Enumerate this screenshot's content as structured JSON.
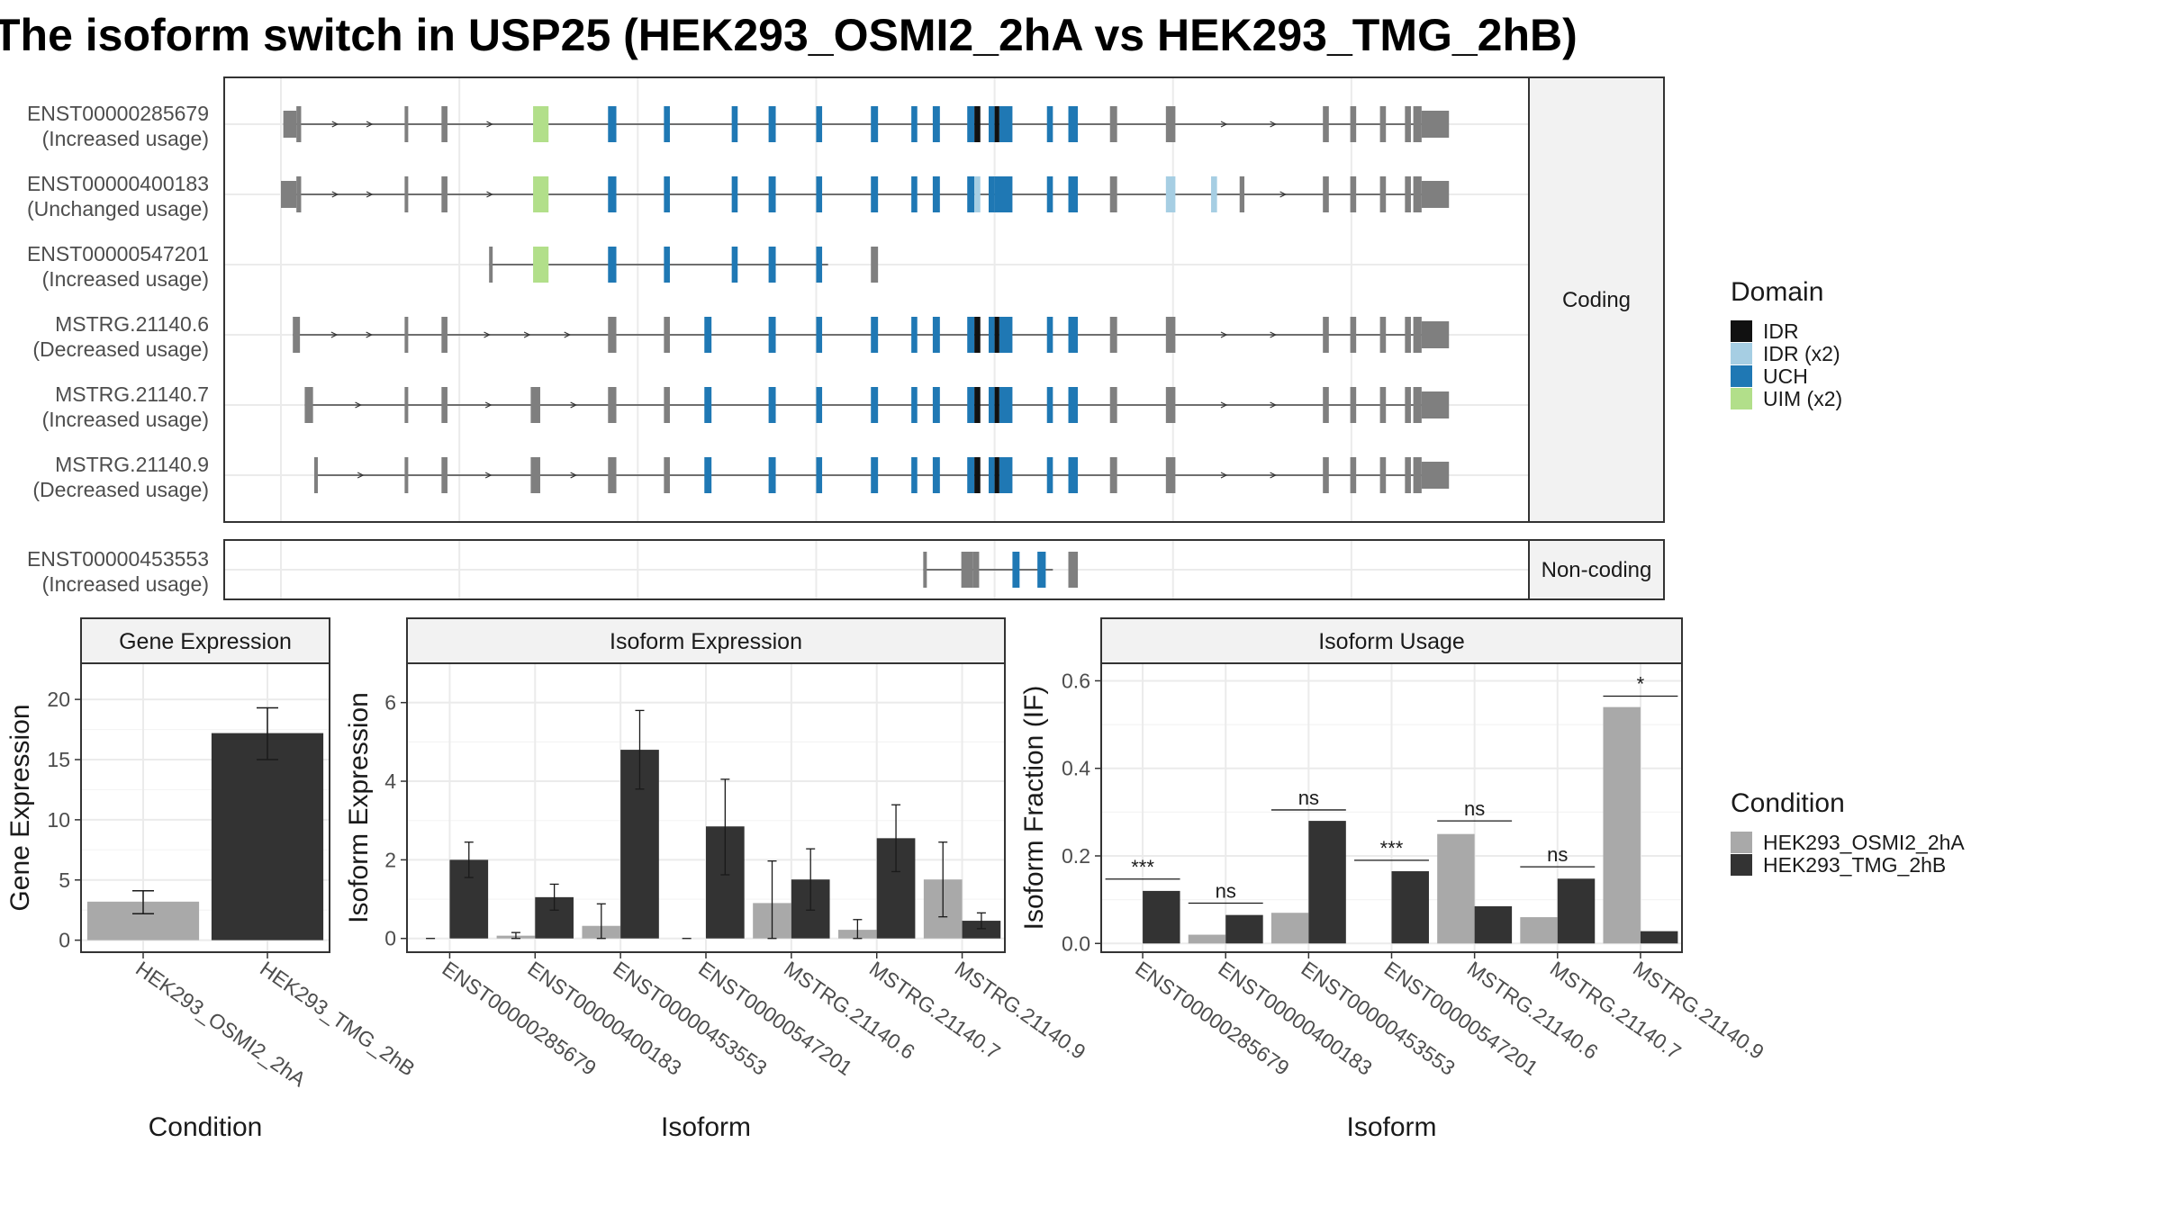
{
  "title": "The isoform switch in USP25 (HEK293_OSMI2_2hA vs HEK293_TMG_2hB)",
  "colors": {
    "IDR": "#111111",
    "IDR (x2)": "#a6cee3",
    "UCH": "#1f78b4",
    "UIM (x2)": "#b2df8a",
    "exon": "#7f7f7f",
    "cond1": "#a9a9a9",
    "cond2": "#333333"
  },
  "structure": {
    "facets": [
      "Coding",
      "Non-coding"
    ],
    "coding": [
      {
        "name": "ENST00000285679",
        "usage": "(Increased usage)",
        "start": 0.2,
        "end": 96.8,
        "exons": [
          [
            0.2,
            1.3,
            "utr"
          ],
          [
            1.3,
            1.7,
            null
          ],
          [
            10.4,
            10.7,
            null
          ],
          [
            13.5,
            14.0,
            null
          ],
          [
            21.2,
            22.5,
            "UIM (x2)"
          ],
          [
            27.5,
            28.2,
            "UCH"
          ],
          [
            32.2,
            32.7,
            "UCH"
          ],
          [
            37.9,
            38.4,
            "UCH"
          ],
          [
            41.0,
            41.6,
            "UCH"
          ],
          [
            45.0,
            45.5,
            "UCH"
          ],
          [
            49.6,
            50.2,
            "UCH"
          ],
          [
            53.0,
            53.5,
            "UCH"
          ],
          [
            54.8,
            55.4,
            "UCH"
          ],
          [
            57.7,
            58.3,
            "UCH"
          ],
          [
            58.3,
            58.8,
            "IDR"
          ],
          [
            59.5,
            60.0,
            "UCH"
          ],
          [
            60.0,
            60.4,
            "IDR"
          ],
          [
            60.4,
            61.5,
            "UCH"
          ],
          [
            64.4,
            64.9,
            "UCH"
          ],
          [
            66.2,
            67.0,
            "UCH"
          ],
          [
            69.7,
            70.3,
            null
          ],
          [
            74.4,
            75.2,
            null
          ],
          [
            87.6,
            88.1,
            null
          ],
          [
            89.9,
            90.4,
            null
          ],
          [
            92.4,
            92.9,
            null
          ],
          [
            94.5,
            95.0,
            null
          ],
          [
            95.2,
            95.9,
            null
          ],
          [
            95.9,
            98.2,
            "utr"
          ]
        ]
      },
      {
        "name": "ENST00000400183",
        "usage": "(Unchanged usage)",
        "start": 0.0,
        "end": 96.8,
        "exons": [
          [
            0.0,
            1.3,
            "utr"
          ],
          [
            1.3,
            1.7,
            null
          ],
          [
            10.4,
            10.7,
            null
          ],
          [
            13.5,
            14.0,
            null
          ],
          [
            21.2,
            22.5,
            "UIM (x2)"
          ],
          [
            27.5,
            28.2,
            "UCH"
          ],
          [
            32.2,
            32.7,
            "UCH"
          ],
          [
            37.9,
            38.4,
            "UCH"
          ],
          [
            41.0,
            41.6,
            "UCH"
          ],
          [
            45.0,
            45.5,
            "UCH"
          ],
          [
            49.6,
            50.2,
            "UCH"
          ],
          [
            53.0,
            53.5,
            "UCH"
          ],
          [
            54.8,
            55.4,
            "UCH"
          ],
          [
            57.7,
            58.3,
            "UCH"
          ],
          [
            58.3,
            58.8,
            "IDR (x2)"
          ],
          [
            59.5,
            60.0,
            "UCH"
          ],
          [
            60.0,
            61.5,
            "UCH"
          ],
          [
            64.4,
            64.9,
            "UCH"
          ],
          [
            66.2,
            67.0,
            "UCH"
          ],
          [
            69.7,
            70.3,
            null
          ],
          [
            74.4,
            75.2,
            "IDR (x2)"
          ],
          [
            78.2,
            78.7,
            "IDR (x2)"
          ],
          [
            80.6,
            81.0,
            null
          ],
          [
            87.6,
            88.1,
            null
          ],
          [
            89.9,
            90.4,
            null
          ],
          [
            92.4,
            92.9,
            null
          ],
          [
            94.5,
            95.0,
            null
          ],
          [
            95.2,
            95.9,
            null
          ],
          [
            95.9,
            98.2,
            "utr"
          ]
        ]
      },
      {
        "name": "ENST00000547201",
        "usage": "(Increased usage)",
        "start": 17.5,
        "end": 46.0,
        "exons": [
          [
            17.5,
            17.7,
            null
          ],
          [
            21.2,
            22.5,
            "UIM (x2)"
          ],
          [
            27.5,
            28.2,
            "UCH"
          ],
          [
            32.2,
            32.7,
            "UCH"
          ],
          [
            37.9,
            38.4,
            "UCH"
          ],
          [
            41.0,
            41.6,
            "UCH"
          ],
          [
            45.0,
            45.5,
            "UCH"
          ],
          [
            49.6,
            50.2,
            null
          ]
        ]
      },
      {
        "name": "MSTRG.21140.6",
        "usage": "(Decreased usage)",
        "start": 1.0,
        "end": 96.8,
        "exons": [
          [
            1.0,
            1.6,
            null
          ],
          [
            10.4,
            10.7,
            null
          ],
          [
            13.5,
            14.0,
            null
          ],
          [
            27.5,
            28.2,
            null
          ],
          [
            32.2,
            32.7,
            null
          ],
          [
            35.6,
            36.2,
            "UCH"
          ],
          [
            41.0,
            41.6,
            "UCH"
          ],
          [
            45.0,
            45.5,
            "UCH"
          ],
          [
            49.6,
            50.2,
            "UCH"
          ],
          [
            53.0,
            53.5,
            "UCH"
          ],
          [
            54.8,
            55.4,
            "UCH"
          ],
          [
            57.7,
            58.3,
            "UCH"
          ],
          [
            58.3,
            58.8,
            "IDR"
          ],
          [
            59.5,
            60.0,
            "UCH"
          ],
          [
            60.0,
            60.4,
            "IDR"
          ],
          [
            60.4,
            61.5,
            "UCH"
          ],
          [
            64.4,
            64.9,
            "UCH"
          ],
          [
            66.2,
            67.0,
            "UCH"
          ],
          [
            69.7,
            70.3,
            null
          ],
          [
            74.4,
            75.2,
            null
          ],
          [
            87.6,
            88.1,
            null
          ],
          [
            89.9,
            90.4,
            null
          ],
          [
            92.4,
            92.9,
            null
          ],
          [
            94.5,
            95.0,
            null
          ],
          [
            95.2,
            95.9,
            null
          ],
          [
            95.9,
            98.2,
            "utr"
          ]
        ]
      },
      {
        "name": "MSTRG.21140.7",
        "usage": "(Increased usage)",
        "start": 2.0,
        "end": 96.8,
        "exons": [
          [
            2.0,
            2.7,
            null
          ],
          [
            10.4,
            10.7,
            null
          ],
          [
            13.5,
            14.0,
            null
          ],
          [
            21.0,
            21.8,
            null
          ],
          [
            27.5,
            28.2,
            null
          ],
          [
            32.2,
            32.7,
            null
          ],
          [
            35.6,
            36.2,
            "UCH"
          ],
          [
            41.0,
            41.6,
            "UCH"
          ],
          [
            45.0,
            45.5,
            "UCH"
          ],
          [
            49.6,
            50.2,
            "UCH"
          ],
          [
            53.0,
            53.5,
            "UCH"
          ],
          [
            54.8,
            55.4,
            "UCH"
          ],
          [
            57.7,
            58.3,
            "UCH"
          ],
          [
            58.3,
            58.8,
            "IDR"
          ],
          [
            59.5,
            60.0,
            "UCH"
          ],
          [
            60.0,
            60.4,
            "IDR"
          ],
          [
            60.4,
            61.5,
            "UCH"
          ],
          [
            64.4,
            64.9,
            "UCH"
          ],
          [
            66.2,
            67.0,
            "UCH"
          ],
          [
            69.7,
            70.3,
            null
          ],
          [
            74.4,
            75.2,
            null
          ],
          [
            87.6,
            88.1,
            null
          ],
          [
            89.9,
            90.4,
            null
          ],
          [
            92.4,
            92.9,
            null
          ],
          [
            94.5,
            95.0,
            null
          ],
          [
            95.2,
            95.9,
            null
          ],
          [
            95.9,
            98.2,
            "utr"
          ]
        ]
      },
      {
        "name": "MSTRG.21140.9",
        "usage": "(Decreased usage)",
        "start": 2.8,
        "end": 96.8,
        "exons": [
          [
            2.8,
            3.1,
            null
          ],
          [
            10.4,
            10.7,
            null
          ],
          [
            13.5,
            14.0,
            null
          ],
          [
            21.0,
            21.8,
            null
          ],
          [
            27.5,
            28.2,
            null
          ],
          [
            32.2,
            32.7,
            null
          ],
          [
            35.6,
            36.2,
            "UCH"
          ],
          [
            41.0,
            41.6,
            "UCH"
          ],
          [
            45.0,
            45.5,
            "UCH"
          ],
          [
            49.6,
            50.2,
            "UCH"
          ],
          [
            53.0,
            53.5,
            "UCH"
          ],
          [
            54.8,
            55.4,
            "UCH"
          ],
          [
            57.7,
            58.3,
            "UCH"
          ],
          [
            58.3,
            58.8,
            "IDR"
          ],
          [
            59.5,
            60.0,
            "UCH"
          ],
          [
            60.0,
            60.4,
            "IDR"
          ],
          [
            60.4,
            61.5,
            "UCH"
          ],
          [
            64.4,
            64.9,
            "UCH"
          ],
          [
            66.2,
            67.0,
            "UCH"
          ],
          [
            69.7,
            70.3,
            null
          ],
          [
            74.4,
            75.2,
            null
          ],
          [
            87.6,
            88.1,
            null
          ],
          [
            89.9,
            90.4,
            null
          ],
          [
            92.4,
            92.9,
            null
          ],
          [
            94.5,
            95.0,
            null
          ],
          [
            95.2,
            95.9,
            null
          ],
          [
            95.9,
            98.2,
            "utr"
          ]
        ]
      }
    ],
    "noncoding": [
      {
        "name": "ENST00000453553",
        "usage": "(Increased usage)",
        "start": 54.0,
        "end": 64.9,
        "exons": [
          [
            54.0,
            54.3,
            null
          ],
          [
            57.2,
            58.2,
            null
          ],
          [
            58.2,
            58.7,
            null
          ],
          [
            61.5,
            62.1,
            "UCH"
          ],
          [
            63.6,
            64.3,
            "UCH"
          ],
          [
            66.2,
            67.0,
            null
          ]
        ]
      }
    ]
  },
  "legend_domain": {
    "title": "Domain",
    "items": [
      "IDR",
      "IDR (x2)",
      "UCH",
      "UIM (x2)"
    ]
  },
  "legend_condition": {
    "title": "Condition",
    "items": [
      "HEK293_OSMI2_2hA",
      "HEK293_TMG_2hB"
    ]
  },
  "chart_data": [
    {
      "type": "bar",
      "title": "Gene Expression",
      "xlabel": "Condition",
      "ylabel": "Gene Expression",
      "ylim": [
        -1,
        23
      ],
      "yticks": [
        0,
        5,
        10,
        15,
        20
      ],
      "categories": [
        "HEK293_OSMI2_2hA",
        "HEK293_TMG_2hB"
      ],
      "values": [
        3.2,
        17.2
      ],
      "errors": [
        [
          2.2,
          4.1
        ],
        [
          15.0,
          19.3
        ]
      ]
    },
    {
      "type": "bar",
      "title": "Isoform Expression",
      "xlabel": "Isoform",
      "ylabel": "Isoform Expression",
      "ylim": [
        -0.35,
        7.0
      ],
      "yticks": [
        0,
        2,
        4,
        6
      ],
      "categories": [
        "ENST00000285679",
        "ENST00000400183",
        "ENST00000453553",
        "ENST00000547201",
        "MSTRG.21140.6",
        "MSTRG.21140.7",
        "MSTRG.21140.9"
      ],
      "series": [
        {
          "name": "HEK293_OSMI2_2hA",
          "values": [
            0.0,
            0.07,
            0.32,
            0.0,
            0.9,
            0.22,
            1.5
          ],
          "errors": [
            [
              0,
              0
            ],
            [
              0.0,
              0.15
            ],
            [
              0.0,
              0.88
            ],
            [
              0,
              0
            ],
            [
              0.0,
              1.97
            ],
            [
              0.0,
              0.48
            ],
            [
              0.55,
              2.45
            ]
          ]
        },
        {
          "name": "HEK293_TMG_2hB",
          "values": [
            2.0,
            1.05,
            4.8,
            2.85,
            1.5,
            2.55,
            0.45
          ],
          "errors": [
            [
              1.55,
              2.45
            ],
            [
              0.72,
              1.38
            ],
            [
              3.8,
              5.8
            ],
            [
              1.62,
              4.05
            ],
            [
              0.72,
              2.28
            ],
            [
              1.7,
              3.4
            ],
            [
              0.25,
              0.65
            ]
          ]
        }
      ]
    },
    {
      "type": "bar",
      "title": "Isoform Usage",
      "xlabel": "Isoform",
      "ylabel": "Isoform Fraction (IF)",
      "ylim": [
        -0.02,
        0.64
      ],
      "yticks": [
        0.0,
        0.2,
        0.4,
        0.6
      ],
      "yticklabels": [
        "0.0",
        "0.2",
        "0.4",
        "0.6"
      ],
      "categories": [
        "ENST00000285679",
        "ENST00000400183",
        "ENST00000453553",
        "ENST00000547201",
        "MSTRG.21140.6",
        "MSTRG.21140.7",
        "MSTRG.21140.9"
      ],
      "series": [
        {
          "name": "HEK293_OSMI2_2hA",
          "values": [
            0.0,
            0.02,
            0.07,
            0.0,
            0.25,
            0.06,
            0.54
          ]
        },
        {
          "name": "HEK293_TMG_2hB",
          "values": [
            0.12,
            0.065,
            0.28,
            0.165,
            0.085,
            0.148,
            0.028
          ]
        }
      ],
      "significance": [
        "***",
        "ns",
        "ns",
        "***",
        "ns",
        "ns",
        "*"
      ],
      "significance_y": [
        0.147,
        0.092,
        0.305,
        0.19,
        0.28,
        0.175,
        0.565
      ]
    }
  ]
}
